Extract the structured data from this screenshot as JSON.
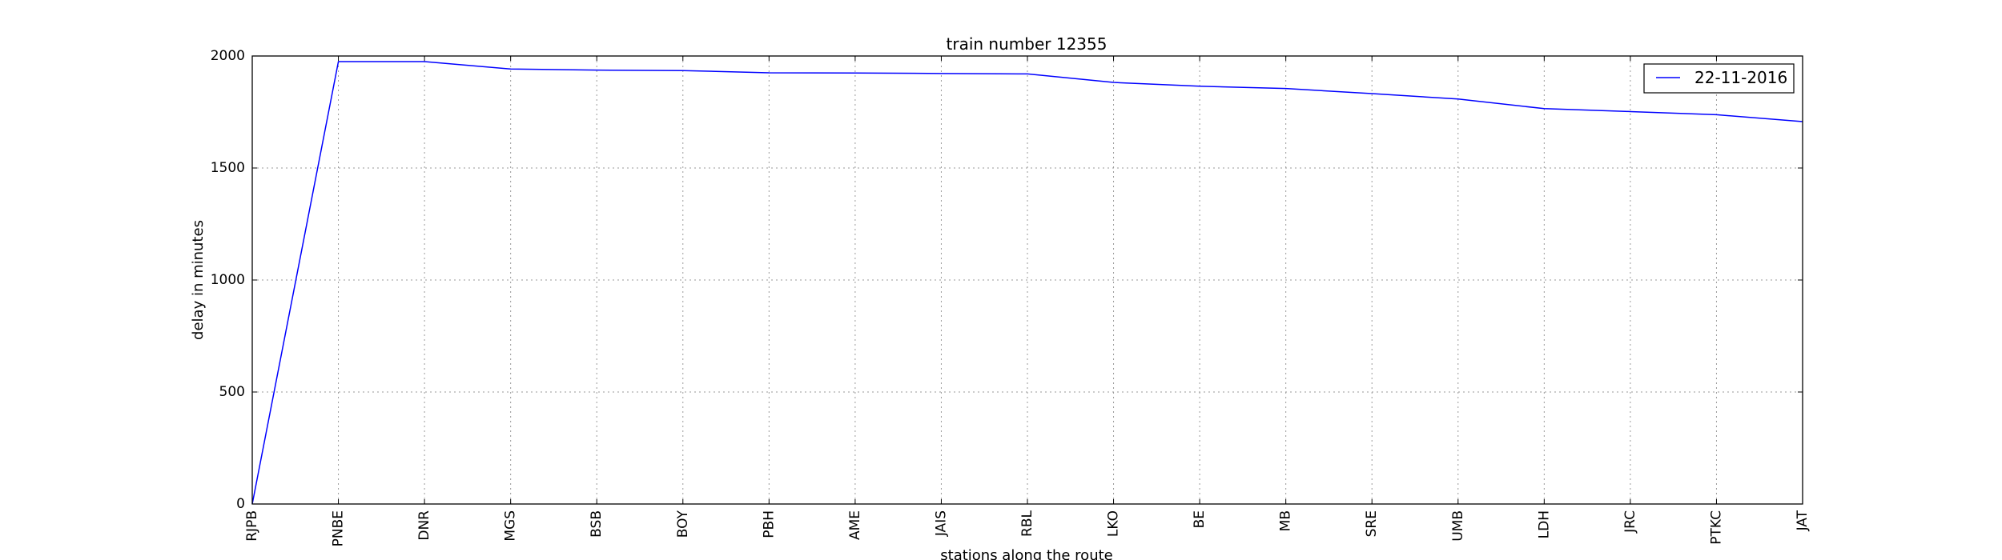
{
  "chart_data": {
    "type": "line",
    "title": "train number 12355",
    "xlabel": "stations along the route",
    "ylabel": "delay in minutes",
    "categories": [
      "RJPB",
      "PNBE",
      "DNR",
      "MGS",
      "BSB",
      "BOY",
      "PBH",
      "AME",
      "JAIS",
      "RBL",
      "LKO",
      "BE",
      "MB",
      "SRE",
      "UMB",
      "LDH",
      "JRC",
      "PTKC",
      "JAT"
    ],
    "series": [
      {
        "name": "22-11-2016",
        "color": "#0000ff",
        "values": [
          0,
          1975,
          1975,
          1942,
          1937,
          1935,
          1925,
          1924,
          1922,
          1920,
          1882,
          1865,
          1855,
          1832,
          1808,
          1765,
          1752,
          1738,
          1707
        ]
      }
    ],
    "ylim": [
      0,
      2000
    ],
    "yticks": [
      0,
      500,
      1000,
      1500,
      2000
    ],
    "grid": true,
    "legend_position": "top-right"
  }
}
